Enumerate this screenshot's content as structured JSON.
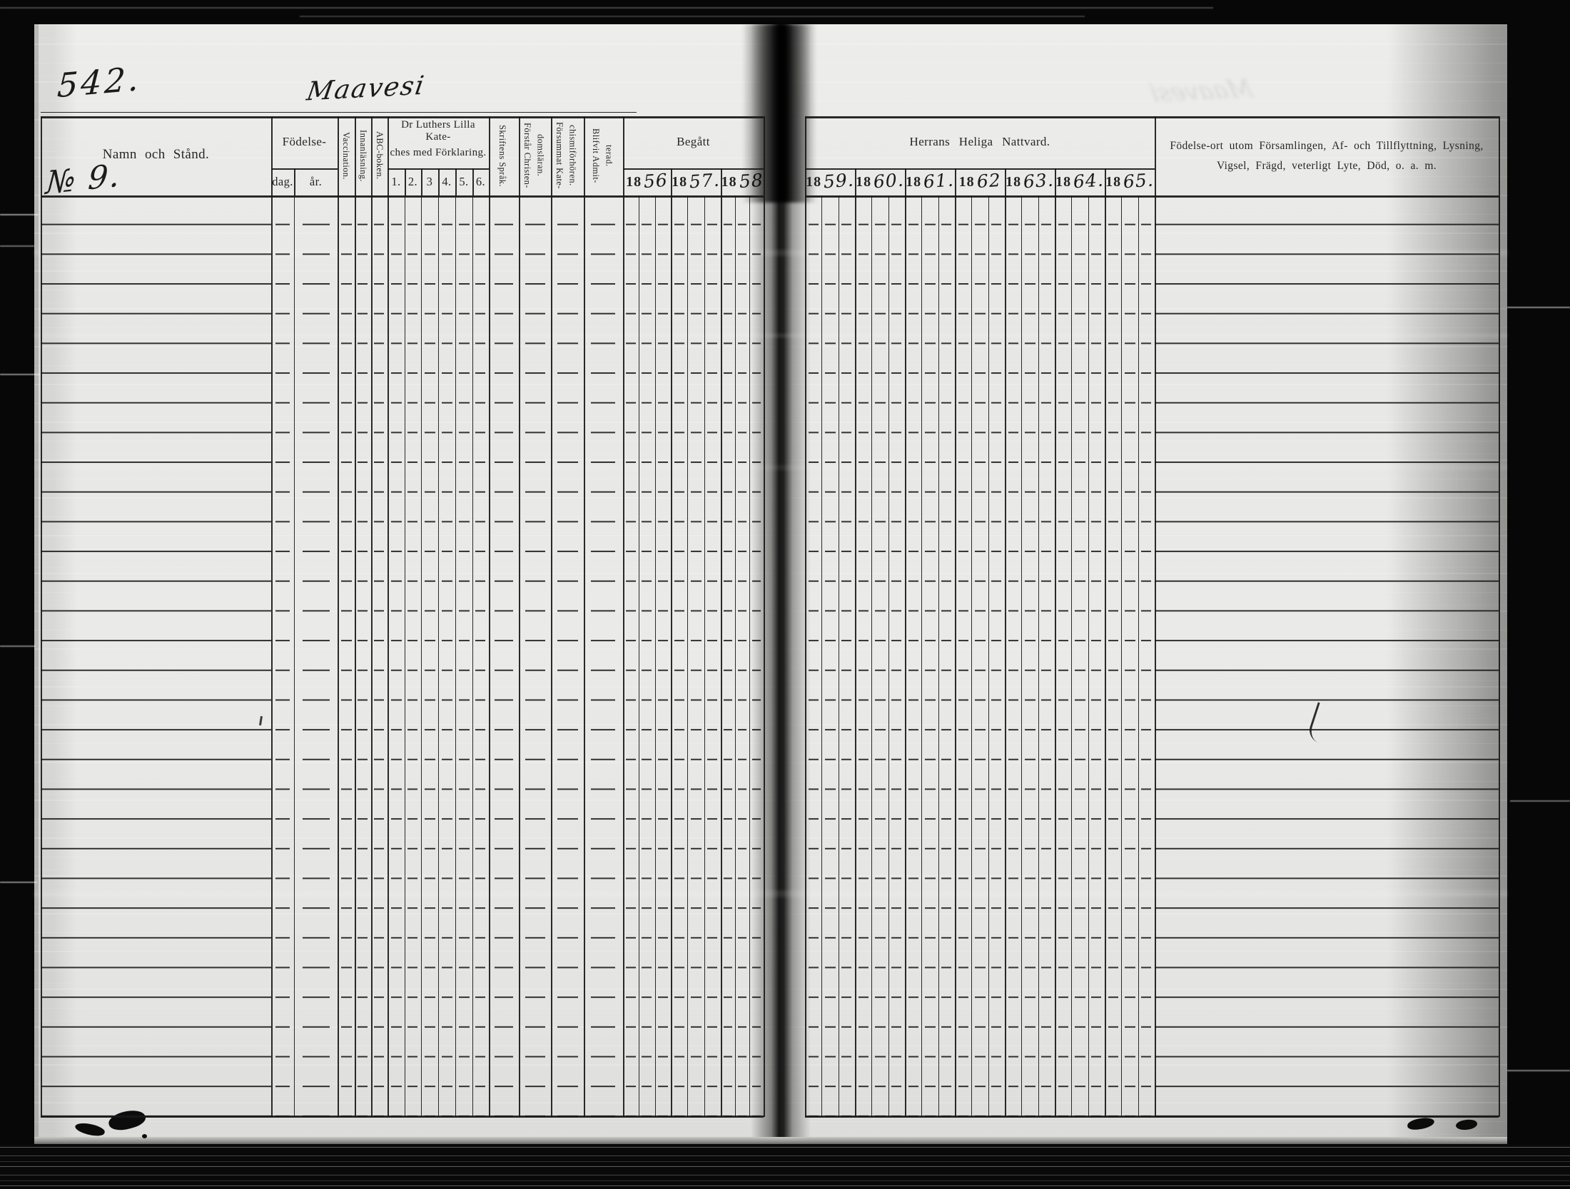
{
  "document": {
    "page_number": "542.",
    "title": "Maavesi",
    "entry_number": "№ 9."
  },
  "left_table": {
    "name_header": "Namn och Stånd.",
    "birth": {
      "group": "Födelse-",
      "day": "dag.",
      "year": "år."
    },
    "vaccination": "Vaccination.",
    "reading": "Innanläsning.",
    "abc_book": "ABC-boken.",
    "catechism": {
      "line1": "Dr Luthers Lilla Kate-",
      "line2": "ches med Förklaring.",
      "grades": [
        "1.",
        "2.",
        "3",
        "4.",
        "5.",
        "6."
      ]
    },
    "scripture": "Skriftens Språk.",
    "understands": "Förstår Christen- domsläran.",
    "neglected": "Försummat Kate- chismiförhören.",
    "admitted": "Blifvit Admit- terad.",
    "communion": {
      "group": "Begått",
      "year_prefix": "18",
      "years": [
        "56",
        "57.",
        "58"
      ]
    }
  },
  "right_table": {
    "communion_header": "Herrans Heliga Nattvard.",
    "year_prefix": "18",
    "years": [
      "59.",
      "60.",
      "61.",
      "62",
      "63.",
      "64.",
      "65."
    ],
    "notes_header": "Födelse-ort utom Församlingen, Af- och Tillflyttning, Lysning, Vigsel, Frägd, veterligt Lyte, Död, o. a. m."
  },
  "grid": {
    "rows": 31
  }
}
